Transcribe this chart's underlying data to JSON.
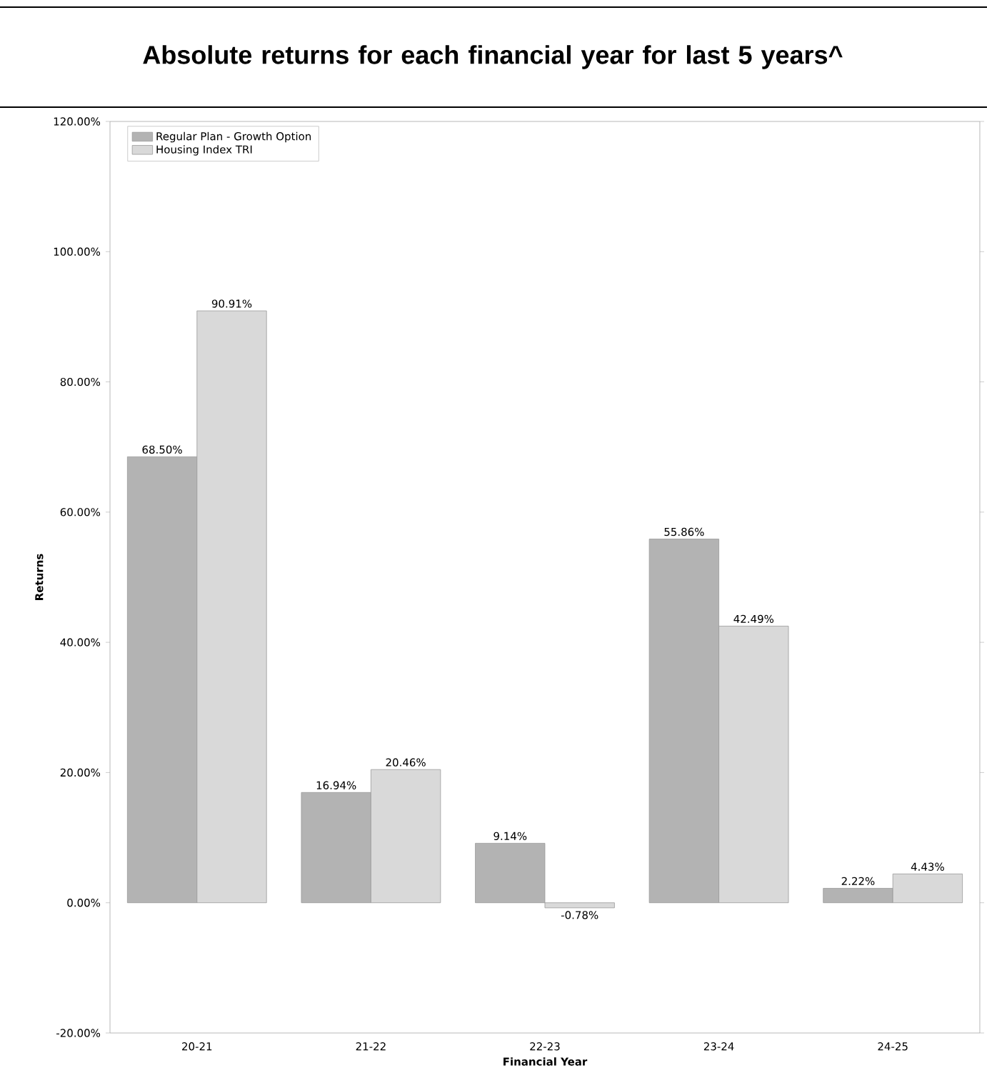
{
  "chart_data": {
    "type": "bar",
    "title": "Absolute returns for each financial year for last 5 years^",
    "xlabel": "Financial Year",
    "ylabel": "Returns",
    "categories": [
      "20-21",
      "21-22",
      "22-23",
      "23-24",
      "24-25"
    ],
    "series": [
      {
        "name": "Regular Plan - Growth Option",
        "color": "#b3b3b3",
        "values": [
          68.5,
          16.94,
          9.14,
          55.86,
          2.22
        ],
        "value_labels": [
          "68.50%",
          "16.94%",
          "9.14%",
          "55.86%",
          "2.22%"
        ]
      },
      {
        "name": "Housing Index TRI",
        "color": "#d9d9d9",
        "values": [
          90.91,
          20.46,
          -0.78,
          42.49,
          4.43
        ],
        "value_labels": [
          "90.91%",
          "20.46%",
          "-0.78%",
          "42.49%",
          "4.43%"
        ]
      }
    ],
    "ylim": [
      -20,
      120
    ],
    "yticks": [
      {
        "value": -20,
        "label": "-20.00%"
      },
      {
        "value": 0,
        "label": "0.00%"
      },
      {
        "value": 20,
        "label": "20.00%"
      },
      {
        "value": 40,
        "label": "40.00%"
      },
      {
        "value": 60,
        "label": "60.00%"
      },
      {
        "value": 80,
        "label": "80.00%"
      },
      {
        "value": 100,
        "label": "100.00%"
      },
      {
        "value": 120,
        "label": "120.00%"
      }
    ],
    "legend": "top left",
    "grid": false
  }
}
